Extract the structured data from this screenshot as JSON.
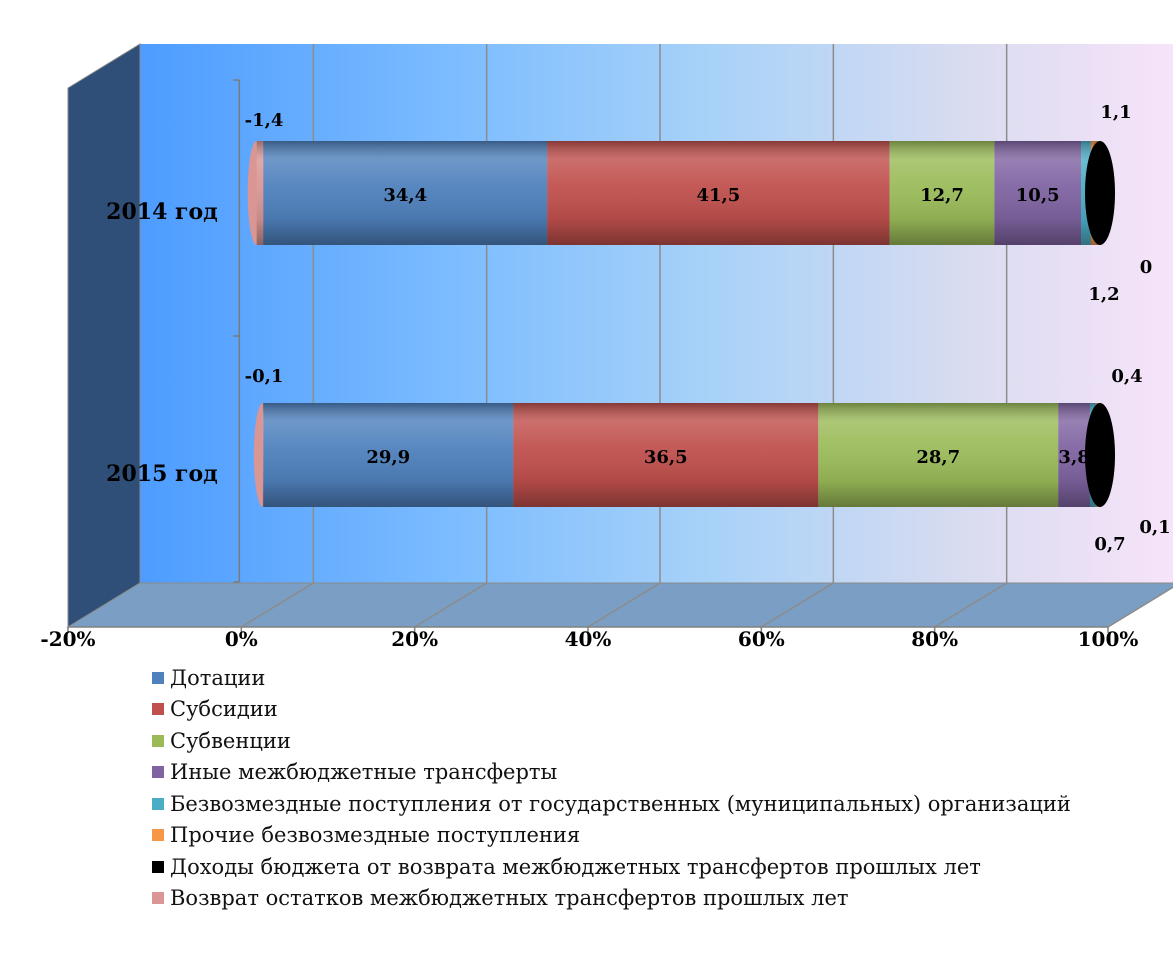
{
  "chart_data": {
    "type": "bar",
    "orientation": "horizontal",
    "stacked": "percent",
    "three_d": true,
    "categories": [
      "2014 год",
      "2015 год"
    ],
    "xlim": [
      -20,
      100
    ],
    "x_ticks": [
      -20,
      0,
      20,
      40,
      60,
      80,
      100
    ],
    "x_tick_labels": [
      "-20%",
      "0%",
      "20%",
      "40%",
      "60%",
      "80%",
      "100%"
    ],
    "grid": true,
    "legend_position": "bottom",
    "series": [
      {
        "name": "Дотации",
        "color": "#4F81BD",
        "values": [
          34.4,
          29.9
        ],
        "labels": [
          "34,4",
          "29,9"
        ]
      },
      {
        "name": "Субсидии",
        "color": "#C0504D",
        "values": [
          41.5,
          36.5
        ],
        "labels": [
          "41,5",
          "36,5"
        ]
      },
      {
        "name": "Субвенции",
        "color": "#9BBB59",
        "values": [
          12.7,
          28.7
        ],
        "labels": [
          "12,7",
          "28,7"
        ]
      },
      {
        "name": "Иные межбюджетные трансферты",
        "color": "#8064A2",
        "values": [
          10.5,
          3.8
        ],
        "labels": [
          "10,5",
          "3,8"
        ]
      },
      {
        "name": "Безвозмездные поступления от государственных (муниципальных) организаций",
        "color": "#4BACC6",
        "values": [
          1.2,
          0.7
        ],
        "labels": [
          "1,2",
          "0,7"
        ]
      },
      {
        "name": "Прочие безвозмездные поступления",
        "color": "#F79646",
        "values": [
          1.1,
          0.4
        ],
        "labels": [
          "1,1",
          "0,4"
        ]
      },
      {
        "name": "Доходы бюджета от возврата межбюджетных трансфертов прошлых лет",
        "color": "#000000",
        "values": [
          0,
          0.1
        ],
        "labels": [
          "0",
          "0,1"
        ]
      },
      {
        "name": "Возврат остатков межбюджетных трансфертов прошлых лет",
        "color": "#D99694",
        "values": [
          -1.4,
          -0.1
        ],
        "labels": [
          "-1,4",
          "-0,1"
        ]
      }
    ]
  }
}
